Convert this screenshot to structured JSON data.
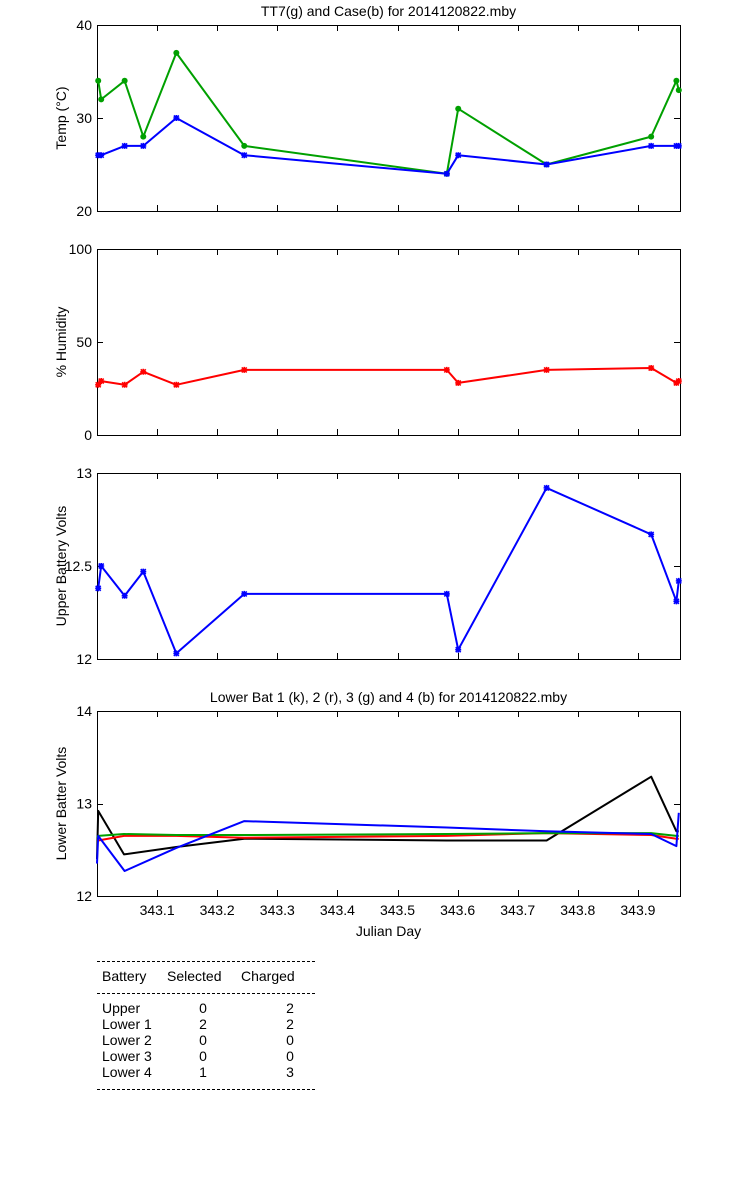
{
  "chart_data": [
    {
      "type": "line",
      "title": "TT7(g) and Case(b) for 2014120822.mby",
      "ylabel": "Temp  (°C)",
      "xlim": [
        343.0,
        343.97
      ],
      "ylim": [
        20,
        40
      ],
      "yticks": [
        "20",
        "30",
        "40"
      ],
      "yticks_values": [
        20,
        30,
        40
      ],
      "grid": false,
      "series": [
        {
          "color": "#00a000",
          "marker": "dot",
          "x": [
            343.002,
            343.007,
            343.046,
            343.077,
            343.132,
            343.245,
            343.582,
            343.601,
            343.748,
            343.922,
            343.964,
            343.968
          ],
          "y": [
            34,
            32,
            34,
            28,
            37,
            27,
            24,
            31,
            25,
            28,
            34,
            33
          ]
        },
        {
          "color": "#0000ff",
          "marker": "star",
          "x": [
            343.002,
            343.007,
            343.046,
            343.077,
            343.132,
            343.245,
            343.582,
            343.601,
            343.748,
            343.922,
            343.964,
            343.968
          ],
          "y": [
            26,
            26,
            27,
            27,
            30,
            26,
            24,
            26,
            25,
            27,
            27,
            27
          ]
        }
      ]
    },
    {
      "type": "line",
      "title": "",
      "ylabel": "% Humidity",
      "xlim": [
        343.0,
        343.97
      ],
      "ylim": [
        0,
        100
      ],
      "yticks": [
        "0",
        "50",
        "100"
      ],
      "yticks_values": [
        0,
        50,
        100
      ],
      "grid": false,
      "series": [
        {
          "color": "#ff0000",
          "marker": "star",
          "x": [
            343.002,
            343.007,
            343.046,
            343.077,
            343.132,
            343.245,
            343.582,
            343.601,
            343.748,
            343.922,
            343.964,
            343.968
          ],
          "y": [
            27,
            29,
            27,
            34,
            27,
            35,
            35,
            28,
            35,
            36,
            28,
            29
          ]
        }
      ]
    },
    {
      "type": "line",
      "title": "",
      "ylabel": "Upper Battery Volts",
      "xlim": [
        343.0,
        343.97
      ],
      "ylim": [
        12,
        13
      ],
      "yticks": [
        "12",
        "12.5",
        "13"
      ],
      "yticks_values": [
        12,
        12.5,
        13
      ],
      "grid": false,
      "series": [
        {
          "color": "#0000ff",
          "marker": "star",
          "x": [
            343.002,
            343.007,
            343.046,
            343.077,
            343.132,
            343.245,
            343.582,
            343.601,
            343.748,
            343.922,
            343.964,
            343.968
          ],
          "y": [
            12.38,
            12.5,
            12.34,
            12.47,
            12.03,
            12.35,
            12.35,
            12.05,
            12.92,
            12.67,
            12.31,
            12.42
          ]
        }
      ]
    },
    {
      "type": "line",
      "title": "Lower Bat 1 (k), 2 (r), 3 (g) and 4 (b) for 2014120822.mby",
      "xlabel": "Julian Day",
      "ylabel": "Lower Batter Volts",
      "xlim": [
        343.0,
        343.97
      ],
      "ylim": [
        12,
        14
      ],
      "yticks": [
        "12",
        "13",
        "14"
      ],
      "yticks_values": [
        12,
        13,
        14
      ],
      "xticks": [
        "343.1",
        "343.2",
        "343.3",
        "343.4",
        "343.5",
        "343.6",
        "343.7",
        "343.8",
        "343.9"
      ],
      "xticks_values": [
        343.1,
        343.2,
        343.3,
        343.4,
        343.5,
        343.6,
        343.7,
        343.8,
        343.9
      ],
      "grid": false,
      "series": [
        {
          "color": "#000000",
          "marker": "none",
          "x": [
            343.0,
            343.002,
            343.045,
            343.132,
            343.245,
            343.582,
            343.748,
            343.922,
            343.964,
            343.968
          ],
          "y": [
            12.4,
            12.92,
            12.45,
            12.53,
            12.62,
            12.6,
            12.6,
            13.29,
            12.7,
            12.7
          ]
        },
        {
          "color": "#ff0000",
          "marker": "none",
          "x": [
            343.0,
            343.002,
            343.045,
            343.132,
            343.245,
            343.582,
            343.748,
            343.922,
            343.964,
            343.968
          ],
          "y": [
            12.6,
            12.6,
            12.65,
            12.65,
            12.63,
            12.65,
            12.68,
            12.66,
            12.62,
            12.62
          ]
        },
        {
          "color": "#00a000",
          "marker": "none",
          "x": [
            343.0,
            343.002,
            343.045,
            343.132,
            343.245,
            343.582,
            343.748,
            343.922,
            343.964,
            343.968
          ],
          "y": [
            12.63,
            12.65,
            12.67,
            12.66,
            12.66,
            12.67,
            12.68,
            12.68,
            12.65,
            12.65
          ]
        },
        {
          "color": "#0000ff",
          "marker": "none",
          "x": [
            343.0,
            343.002,
            343.046,
            343.132,
            343.245,
            343.582,
            343.748,
            343.922,
            343.964,
            343.968
          ],
          "y": [
            12.35,
            12.65,
            12.27,
            12.52,
            12.81,
            12.74,
            12.7,
            12.67,
            12.54,
            12.9
          ]
        }
      ]
    }
  ],
  "battery_table": {
    "headers": [
      "Battery",
      "Selected",
      "Charged"
    ],
    "rows": [
      [
        "Upper",
        "0",
        "2"
      ],
      [
        "Lower 1",
        "2",
        "2"
      ],
      [
        "Lower 2",
        "0",
        "0"
      ],
      [
        "Lower 3",
        "0",
        "0"
      ],
      [
        "Lower 4",
        "1",
        "3"
      ]
    ]
  }
}
